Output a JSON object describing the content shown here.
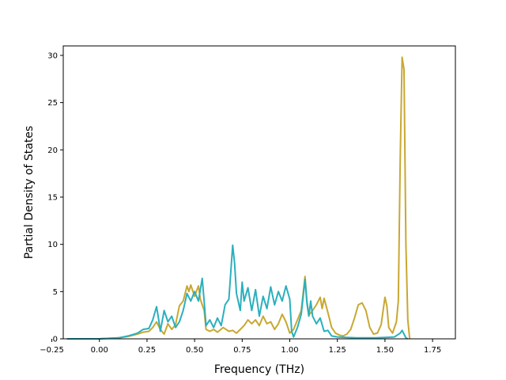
{
  "chart_data": {
    "type": "line",
    "title": "",
    "xlabel": "Frequency (THz)",
    "ylabel": "Partial Density of States",
    "xlim": [
      -0.19,
      1.87
    ],
    "ylim": [
      0,
      31
    ],
    "xticks": [
      -0.25,
      0.0,
      0.25,
      0.5,
      0.75,
      1.0,
      1.25,
      1.5,
      1.75
    ],
    "xtick_labels": [
      "−0.25",
      "0.00",
      "0.25",
      "0.50",
      "0.75",
      "1.00",
      "1.25",
      "1.50",
      "1.75"
    ],
    "yticks": [
      0,
      5,
      10,
      15,
      20,
      25,
      30
    ],
    "ytick_labels": [
      "0",
      "5",
      "10",
      "15",
      "20",
      "25",
      "30"
    ],
    "grid": false,
    "legend": "none",
    "series": [
      {
        "color": "#c8a832",
        "points": [
          [
            -0.17,
            0
          ],
          [
            0.0,
            0
          ],
          [
            0.05,
            0.05
          ],
          [
            0.1,
            0.1
          ],
          [
            0.15,
            0.25
          ],
          [
            0.2,
            0.5
          ],
          [
            0.23,
            0.7
          ],
          [
            0.26,
            0.8
          ],
          [
            0.28,
            1.2
          ],
          [
            0.3,
            1.8
          ],
          [
            0.32,
            1.0
          ],
          [
            0.34,
            0.5
          ],
          [
            0.36,
            1.6
          ],
          [
            0.38,
            1.0
          ],
          [
            0.4,
            1.5
          ],
          [
            0.42,
            3.5
          ],
          [
            0.44,
            4.0
          ],
          [
            0.46,
            5.6
          ],
          [
            0.47,
            5.0
          ],
          [
            0.48,
            5.7
          ],
          [
            0.5,
            4.5
          ],
          [
            0.52,
            5.6
          ],
          [
            0.53,
            4.2
          ],
          [
            0.55,
            3.0
          ],
          [
            0.56,
            1.0
          ],
          [
            0.58,
            0.8
          ],
          [
            0.6,
            1.0
          ],
          [
            0.62,
            0.7
          ],
          [
            0.65,
            1.2
          ],
          [
            0.68,
            0.8
          ],
          [
            0.7,
            0.9
          ],
          [
            0.72,
            0.6
          ],
          [
            0.74,
            1.0
          ],
          [
            0.76,
            1.4
          ],
          [
            0.78,
            2.0
          ],
          [
            0.8,
            1.6
          ],
          [
            0.82,
            2.0
          ],
          [
            0.84,
            1.4
          ],
          [
            0.86,
            2.4
          ],
          [
            0.88,
            1.6
          ],
          [
            0.9,
            1.8
          ],
          [
            0.92,
            1.0
          ],
          [
            0.94,
            1.6
          ],
          [
            0.96,
            2.6
          ],
          [
            0.98,
            1.8
          ],
          [
            1.0,
            0.6
          ],
          [
            1.02,
            1.0
          ],
          [
            1.04,
            2.0
          ],
          [
            1.06,
            3.0
          ],
          [
            1.08,
            6.6
          ],
          [
            1.09,
            4.0
          ],
          [
            1.1,
            2.5
          ],
          [
            1.12,
            3.0
          ],
          [
            1.14,
            3.6
          ],
          [
            1.16,
            4.4
          ],
          [
            1.17,
            3.2
          ],
          [
            1.18,
            4.3
          ],
          [
            1.2,
            2.8
          ],
          [
            1.22,
            1.2
          ],
          [
            1.24,
            0.6
          ],
          [
            1.26,
            0.4
          ],
          [
            1.28,
            0.3
          ],
          [
            1.3,
            0.5
          ],
          [
            1.32,
            1.0
          ],
          [
            1.34,
            2.2
          ],
          [
            1.36,
            3.6
          ],
          [
            1.38,
            3.8
          ],
          [
            1.4,
            3.0
          ],
          [
            1.42,
            1.2
          ],
          [
            1.44,
            0.5
          ],
          [
            1.46,
            0.6
          ],
          [
            1.48,
            1.5
          ],
          [
            1.5,
            4.4
          ],
          [
            1.51,
            3.5
          ],
          [
            1.52,
            1.2
          ],
          [
            1.54,
            0.6
          ],
          [
            1.56,
            1.8
          ],
          [
            1.57,
            4.0
          ],
          [
            1.58,
            19.0
          ],
          [
            1.59,
            29.8
          ],
          [
            1.6,
            28.5
          ],
          [
            1.61,
            10.0
          ],
          [
            1.62,
            2.0
          ],
          [
            1.63,
            0
          ]
        ]
      },
      {
        "color": "#2ab0be",
        "points": [
          [
            -0.17,
            0
          ],
          [
            0.0,
            0
          ],
          [
            0.05,
            0.05
          ],
          [
            0.1,
            0.1
          ],
          [
            0.15,
            0.3
          ],
          [
            0.2,
            0.6
          ],
          [
            0.23,
            1.0
          ],
          [
            0.26,
            1.1
          ],
          [
            0.28,
            2.0
          ],
          [
            0.3,
            3.4
          ],
          [
            0.31,
            2.2
          ],
          [
            0.32,
            0.8
          ],
          [
            0.34,
            3.0
          ],
          [
            0.36,
            1.8
          ],
          [
            0.38,
            2.4
          ],
          [
            0.4,
            1.2
          ],
          [
            0.42,
            1.8
          ],
          [
            0.44,
            3.0
          ],
          [
            0.46,
            4.8
          ],
          [
            0.48,
            4.0
          ],
          [
            0.5,
            5.0
          ],
          [
            0.52,
            4.0
          ],
          [
            0.54,
            6.4
          ],
          [
            0.55,
            4.0
          ],
          [
            0.56,
            1.4
          ],
          [
            0.58,
            2.0
          ],
          [
            0.6,
            1.2
          ],
          [
            0.62,
            2.2
          ],
          [
            0.64,
            1.4
          ],
          [
            0.66,
            3.6
          ],
          [
            0.68,
            4.2
          ],
          [
            0.7,
            9.9
          ],
          [
            0.71,
            8.0
          ],
          [
            0.72,
            4.8
          ],
          [
            0.74,
            3.0
          ],
          [
            0.75,
            6.0
          ],
          [
            0.76,
            4.0
          ],
          [
            0.78,
            5.4
          ],
          [
            0.8,
            3.0
          ],
          [
            0.82,
            5.2
          ],
          [
            0.84,
            2.4
          ],
          [
            0.86,
            4.5
          ],
          [
            0.88,
            3.2
          ],
          [
            0.9,
            5.5
          ],
          [
            0.92,
            3.6
          ],
          [
            0.94,
            5.0
          ],
          [
            0.96,
            4.0
          ],
          [
            0.98,
            5.6
          ],
          [
            1.0,
            4.2
          ],
          [
            1.01,
            0.8
          ],
          [
            1.02,
            0.2
          ],
          [
            1.04,
            1.2
          ],
          [
            1.06,
            2.6
          ],
          [
            1.08,
            6.3
          ],
          [
            1.09,
            3.8
          ],
          [
            1.1,
            2.4
          ],
          [
            1.11,
            4.0
          ],
          [
            1.12,
            2.4
          ],
          [
            1.14,
            1.6
          ],
          [
            1.16,
            2.2
          ],
          [
            1.18,
            0.8
          ],
          [
            1.2,
            0.9
          ],
          [
            1.22,
            0.3
          ],
          [
            1.25,
            0.2
          ],
          [
            1.3,
            0.15
          ],
          [
            1.35,
            0.1
          ],
          [
            1.4,
            0.1
          ],
          [
            1.45,
            0.1
          ],
          [
            1.5,
            0.15
          ],
          [
            1.55,
            0.2
          ],
          [
            1.58,
            0.6
          ],
          [
            1.59,
            0.9
          ],
          [
            1.6,
            0.5
          ],
          [
            1.61,
            0.1
          ],
          [
            1.62,
            0
          ]
        ]
      }
    ]
  }
}
